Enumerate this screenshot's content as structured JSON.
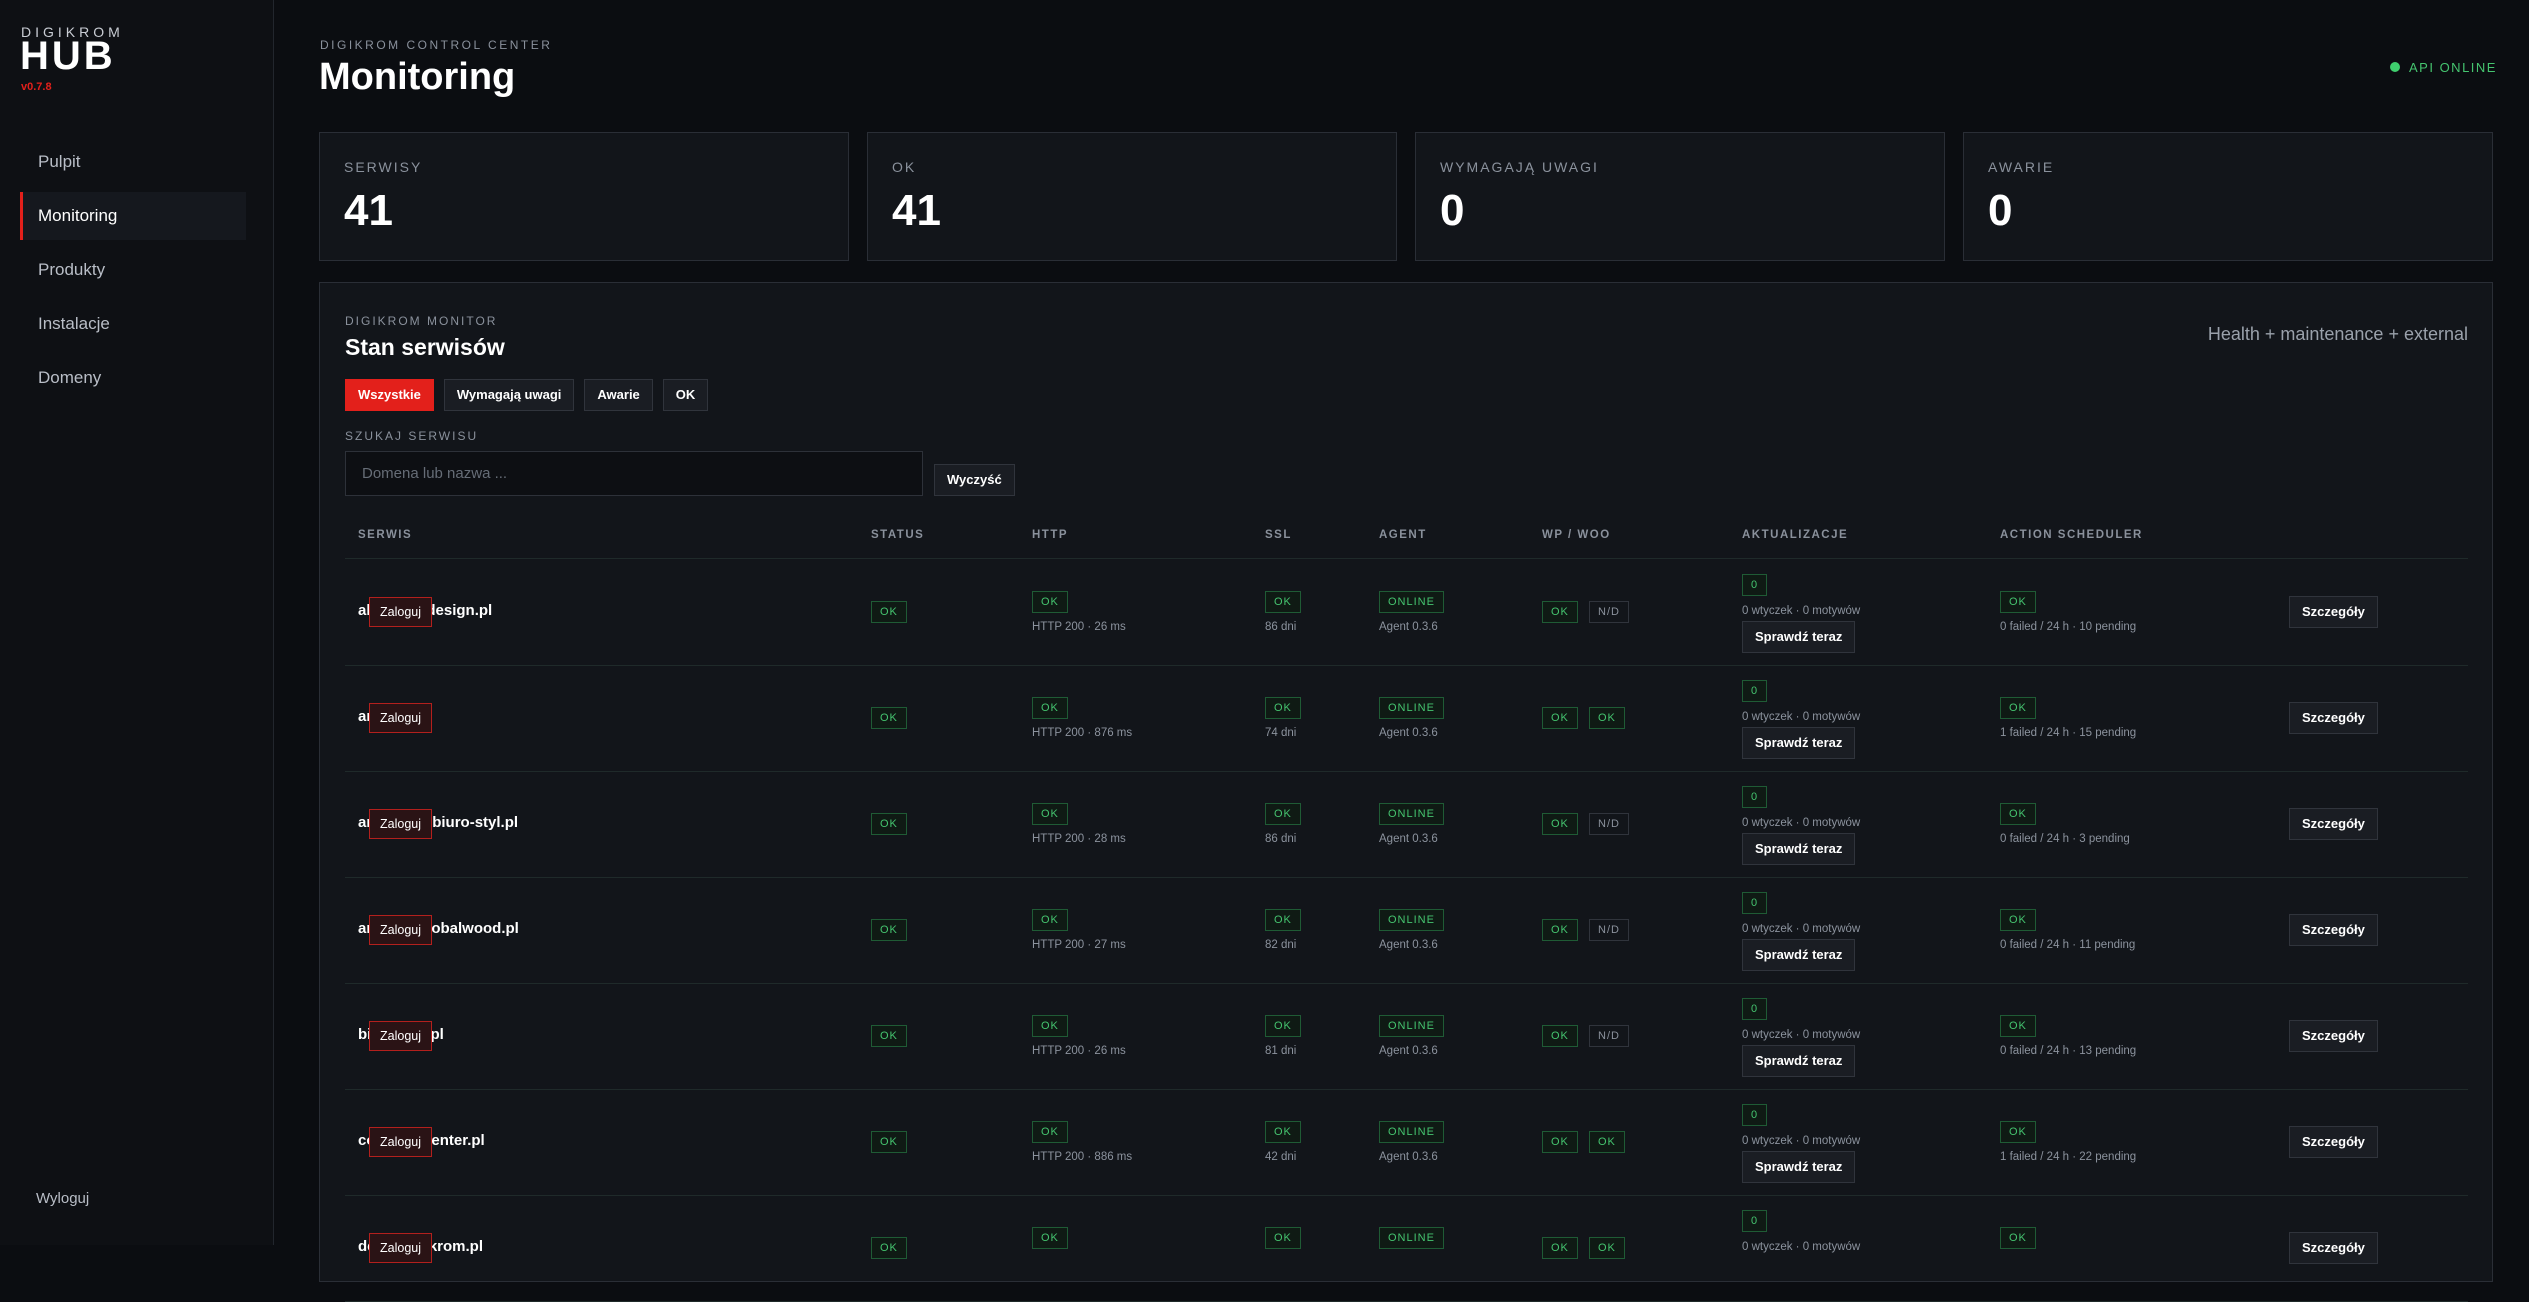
{
  "sidebar": {
    "brand_small": "DIGIKROM",
    "brand": "HUB",
    "version": "v0.7.8",
    "nav": [
      "Pulpit",
      "Monitoring",
      "Produkty",
      "Instalacje",
      "Domeny"
    ],
    "logout": "Wyloguj"
  },
  "header": {
    "eyebrow": "DIGIKROM CONTROL CENTER",
    "title": "Monitoring",
    "api_status": "API ONLINE"
  },
  "stats": [
    {
      "label": "SERWISY",
      "value": 41
    },
    {
      "label": "OK",
      "value": 41
    },
    {
      "label": "WYMAGAJĄ UWAGI",
      "value": 0
    },
    {
      "label": "AWARIE",
      "value": 0
    }
  ],
  "panel": {
    "eyebrow": "DIGIKROM MONITOR",
    "title": "Stan serwisów",
    "note": "Health + maintenance + external",
    "filters": [
      "Wszystkie",
      "Wymagają uwagi",
      "Awarie",
      "OK"
    ],
    "search_label": "SZUKAJ SERWISU",
    "search_placeholder": "Domena lub nazwa ...",
    "clear": "Wyczyść"
  },
  "table": {
    "columns": [
      "SERWIS",
      "STATUS",
      "HTTP",
      "SSL",
      "AGENT",
      "WP / WOO",
      "AKTUALIZACJE",
      "ACTION SCHEDULER"
    ],
    "rows": [
      {
        "name": "akustykaidesign.pl",
        "login": "Zaloguj",
        "status": "OK",
        "http": "OK",
        "http_detail": "HTTP 200 · 26 ms",
        "ssl": "OK",
        "ssl_detail": "86 dni",
        "agent": "ONLINE",
        "agent_detail": "Agent 0.3.6",
        "wp": "OK",
        "woo": "N/D",
        "updates": "0",
        "updates_detail": "0 wtyczek · 0 motywów",
        "check": "Sprawdź teraz",
        "scheduler": "OK",
        "scheduler_detail": "0 failed / 24 h · 10 pending",
        "details": "Szczegóły"
      },
      {
        "name": "amapiu.pl",
        "login": "Zaloguj",
        "status": "OK",
        "http": "OK",
        "http_detail": "HTTP 200 · 876 ms",
        "ssl": "OK",
        "ssl_detail": "74 dni",
        "agent": "ONLINE",
        "agent_detail": "Agent 0.3.6",
        "wp": "OK",
        "woo": "OK",
        "updates": "0",
        "updates_detail": "0 wtyczek · 0 motywów",
        "check": "Sprawdź teraz",
        "scheduler": "OK",
        "scheduler_detail": "1 failed / 24 h · 15 pending",
        "details": "Szczegóły"
      },
      {
        "name": "architekci.biuro-styl.pl",
        "login": "Zaloguj",
        "status": "OK",
        "http": "OK",
        "http_detail": "HTTP 200 · 28 ms",
        "ssl": "OK",
        "ssl_detail": "86 dni",
        "agent": "ONLINE",
        "agent_detail": "Agent 0.3.6",
        "wp": "OK",
        "woo": "N/D",
        "updates": "0",
        "updates_detail": "0 wtyczek · 0 motywów",
        "check": "Sprawdź teraz",
        "scheduler": "OK",
        "scheduler_detail": "0 failed / 24 h · 3 pending",
        "details": "Szczegóły"
      },
      {
        "name": "artparet.globalwood.pl",
        "login": "Zaloguj",
        "status": "OK",
        "http": "OK",
        "http_detail": "HTTP 200 · 27 ms",
        "ssl": "OK",
        "ssl_detail": "82 dni",
        "agent": "ONLINE",
        "agent_detail": "Agent 0.3.6",
        "wp": "OK",
        "woo": "N/D",
        "updates": "0",
        "updates_detail": "0 wtyczek · 0 motywów",
        "check": "Sprawdź teraz",
        "scheduler": "OK",
        "scheduler_detail": "0 failed / 24 h · 11 pending",
        "details": "Szczegóły"
      },
      {
        "name": "biuro-styl.pl",
        "login": "Zaloguj",
        "status": "OK",
        "http": "OK",
        "http_detail": "HTTP 200 · 26 ms",
        "ssl": "OK",
        "ssl_detail": "81 dni",
        "agent": "ONLINE",
        "agent_detail": "Agent 0.3.6",
        "wp": "OK",
        "woo": "N/D",
        "updates": "0",
        "updates_detail": "0 wtyczek · 0 motywów",
        "check": "Sprawdź teraz",
        "scheduler": "OK",
        "scheduler_detail": "0 failed / 24 h · 13 pending",
        "details": "Szczegóły"
      },
      {
        "name": "cosmeticcenter.pl",
        "login": "Zaloguj",
        "status": "OK",
        "http": "OK",
        "http_detail": "HTTP 200 · 886 ms",
        "ssl": "OK",
        "ssl_detail": "42 dni",
        "agent": "ONLINE",
        "agent_detail": "Agent 0.3.6",
        "wp": "OK",
        "woo": "OK",
        "updates": "0",
        "updates_detail": "0 wtyczek · 0 motywów",
        "check": "Sprawdź teraz",
        "scheduler": "OK",
        "scheduler_detail": "1 failed / 24 h · 22 pending",
        "details": "Szczegóły"
      },
      {
        "name": "demo.digikrom.pl",
        "login": "Zaloguj",
        "status": "OK",
        "http": "OK",
        "ssl": "OK",
        "agent": "ONLINE",
        "wp": "OK",
        "woo": "OK",
        "updates": "0",
        "updates_detail": "0 wtyczek · 0 motywów",
        "scheduler": "OK",
        "details": "Szczegóły"
      }
    ]
  }
}
